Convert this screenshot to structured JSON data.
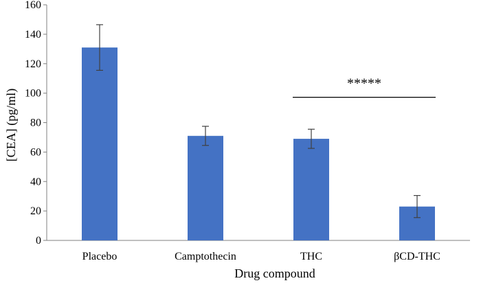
{
  "chart_data": {
    "type": "bar",
    "title": "",
    "xlabel": "Drug compound",
    "ylabel": "[CEA] (pg/ml)",
    "ylim": [
      0,
      160
    ],
    "yticks": [
      0,
      20,
      40,
      60,
      80,
      100,
      120,
      140,
      160
    ],
    "categories": [
      "Placebo",
      "Camptothecin",
      "THC",
      "βCD-THC"
    ],
    "values": [
      131,
      71,
      69,
      23
    ],
    "error": [
      15.5,
      6.5,
      6.5,
      7.5
    ],
    "bar_color": "#4472c4",
    "grid": false,
    "legend": "none",
    "annotations": [
      {
        "text": "*****",
        "from_category": "THC",
        "to_category": "βCD-THC",
        "y": 100
      }
    ]
  }
}
